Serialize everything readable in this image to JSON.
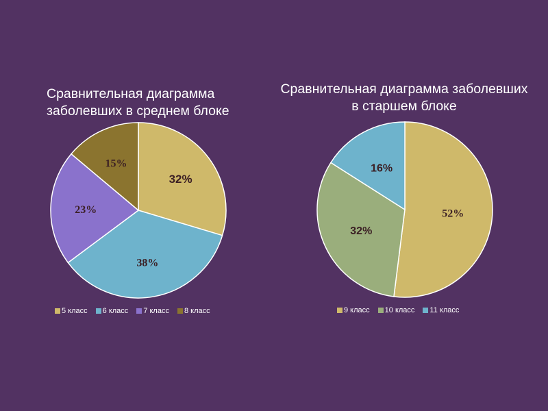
{
  "colors": {
    "background": "#523262",
    "slice_border": "#ffffff",
    "label_text": "#3b1f24"
  },
  "chart_data": [
    {
      "type": "pie",
      "title": "Сравнительная диаграмма заболевших в среднем блоке",
      "title_lines": [
        "Сравнительная диаграмма",
        "заболевших в среднем блоке"
      ],
      "slices": [
        {
          "label": "5 класс",
          "value": 32,
          "display": "32%",
          "color": "#cfb96a",
          "label_font": "sans"
        },
        {
          "label": "6 класс",
          "value": 38,
          "display": "38%",
          "color": "#6eb3cc",
          "label_font": "serif"
        },
        {
          "label": "7 класс",
          "value": 23,
          "display": "23%",
          "color": "#8a72cc",
          "label_font": "serif"
        },
        {
          "label": "8 класс",
          "value": 15,
          "display": "15%",
          "color": "#8b742f",
          "label_font": "serif"
        }
      ],
      "legend_position": "bottom"
    },
    {
      "type": "pie",
      "title": "Сравнительная диаграмма заболевших в старшем блоке",
      "title_lines": [
        "Сравнительная диаграмма заболевших",
        "в старшем блоке"
      ],
      "slices": [
        {
          "label": "9 класс",
          "value": 52,
          "display": "52%",
          "color": "#cfb96a",
          "label_font": "serif"
        },
        {
          "label": "10 класс",
          "value": 32,
          "display": "32%",
          "color": "#9aae7c",
          "label_font": "sans"
        },
        {
          "label": "11 класс",
          "value": 16,
          "display": "16%",
          "color": "#6eb3cc",
          "label_font": "sans"
        }
      ],
      "legend_position": "bottom"
    }
  ]
}
